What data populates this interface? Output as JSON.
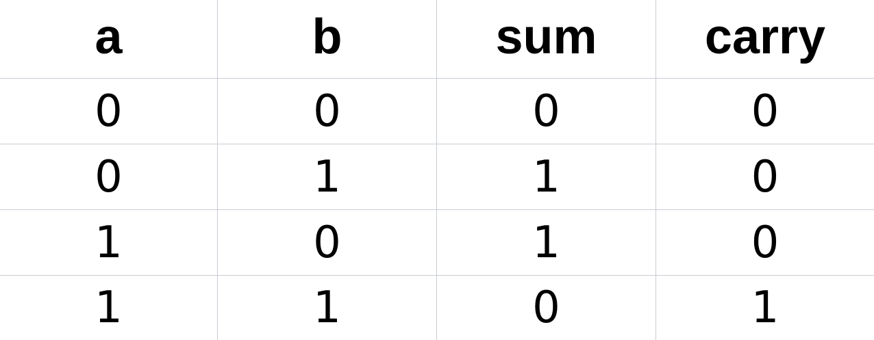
{
  "table": {
    "headers": [
      "a",
      "b",
      "sum",
      "carry"
    ],
    "rows": [
      [
        "0",
        "0",
        "0",
        "0"
      ],
      [
        "0",
        "1",
        "1",
        "0"
      ],
      [
        "1",
        "0",
        "1",
        "0"
      ],
      [
        "1",
        "1",
        "0",
        "1"
      ]
    ]
  },
  "colors": {
    "text": "#000000",
    "grid_line": "#c8ccd4",
    "background": "#ffffff"
  }
}
